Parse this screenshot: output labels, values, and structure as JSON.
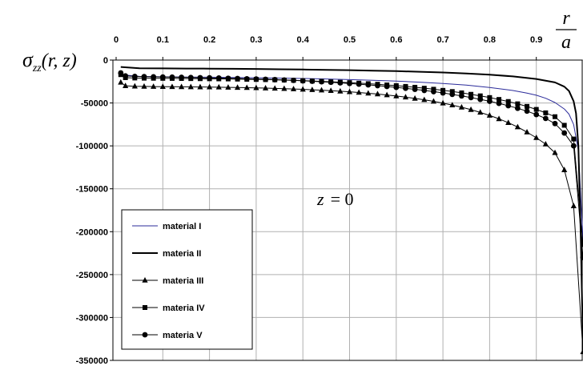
{
  "chart_data": {
    "type": "line",
    "title": "",
    "ylabel": {
      "main": "σ",
      "sub": "zz",
      "args": "(r, z)"
    },
    "xlabel": {
      "numerator": "r",
      "denominator": "a"
    },
    "annotation": {
      "var": "z",
      "eq": "= 0"
    },
    "xlim": [
      0,
      1.0
    ],
    "ylim": [
      -350000,
      0
    ],
    "x_ticks": [
      0,
      0.1,
      0.2,
      0.3,
      0.4,
      0.5,
      0.6,
      0.7,
      0.8,
      0.9
    ],
    "x_tick_labels": [
      "0",
      "0.1",
      "0.2",
      "0.3",
      "0.4",
      "0.5",
      "0.6",
      "0.7",
      "0.8",
      "0.9"
    ],
    "y_ticks": [
      0,
      -50000,
      -100000,
      -150000,
      -200000,
      -250000,
      -300000,
      -350000
    ],
    "y_tick_labels": [
      "0",
      "-50000",
      "-100000",
      "-150000",
      "-200000",
      "-250000",
      "-300000",
      "-350000"
    ],
    "grid": true,
    "x_axis_position": "top",
    "legend_position": "bottom-left",
    "series": [
      {
        "name": "material I",
        "color": "#2b2b9a",
        "marker": "none",
        "x": [
          0.01,
          0.05,
          0.1,
          0.15,
          0.2,
          0.25,
          0.3,
          0.35,
          0.4,
          0.45,
          0.5,
          0.55,
          0.6,
          0.65,
          0.7,
          0.75,
          0.8,
          0.85,
          0.88,
          0.9,
          0.92,
          0.94,
          0.96,
          0.97,
          0.98,
          0.99,
          1.0
        ],
        "values": [
          -17000,
          -19000,
          -19500,
          -19800,
          -20000,
          -20300,
          -20600,
          -21000,
          -21500,
          -22000,
          -22800,
          -23500,
          -24500,
          -25800,
          -27300,
          -29200,
          -32000,
          -35500,
          -38500,
          -41000,
          -44500,
          -49500,
          -57000,
          -63000,
          -75000,
          -105000,
          -210000
        ]
      },
      {
        "name": "materia II",
        "color": "#000000",
        "marker": "none",
        "x": [
          0.01,
          0.05,
          0.1,
          0.15,
          0.2,
          0.25,
          0.3,
          0.35,
          0.4,
          0.45,
          0.5,
          0.55,
          0.6,
          0.65,
          0.7,
          0.75,
          0.8,
          0.85,
          0.9,
          0.94,
          0.96,
          0.97,
          0.98,
          0.985,
          0.99,
          0.995,
          1.0
        ],
        "values": [
          -8000,
          -9500,
          -9700,
          -9900,
          -10000,
          -10200,
          -10400,
          -10700,
          -11000,
          -11400,
          -11800,
          -12300,
          -12900,
          -13600,
          -14500,
          -15600,
          -17000,
          -19000,
          -22000,
          -26000,
          -31000,
          -36000,
          -48000,
          -62000,
          -100000,
          -200000,
          -335000
        ]
      },
      {
        "name": "materia III",
        "color": "#000000",
        "marker": "triangle",
        "x": [
          0.01,
          0.02,
          0.04,
          0.06,
          0.08,
          0.1,
          0.12,
          0.14,
          0.16,
          0.18,
          0.2,
          0.22,
          0.24,
          0.26,
          0.28,
          0.3,
          0.32,
          0.34,
          0.36,
          0.38,
          0.4,
          0.42,
          0.44,
          0.46,
          0.48,
          0.5,
          0.52,
          0.54,
          0.56,
          0.58,
          0.6,
          0.62,
          0.64,
          0.66,
          0.68,
          0.7,
          0.72,
          0.74,
          0.76,
          0.78,
          0.8,
          0.82,
          0.84,
          0.86,
          0.88,
          0.9,
          0.92,
          0.94,
          0.96,
          0.98,
          1.0
        ],
        "values": [
          -26000,
          -30000,
          -30500,
          -30700,
          -30900,
          -31000,
          -31100,
          -31200,
          -31300,
          -31400,
          -31500,
          -31600,
          -31800,
          -32000,
          -32200,
          -32400,
          -32700,
          -33000,
          -33300,
          -33700,
          -34100,
          -34600,
          -35100,
          -35700,
          -36300,
          -37000,
          -37800,
          -38700,
          -39600,
          -40700,
          -41900,
          -43200,
          -44700,
          -46300,
          -48100,
          -50200,
          -52500,
          -55000,
          -57800,
          -61000,
          -64500,
          -68500,
          -73000,
          -78000,
          -84000,
          -90500,
          -98000,
          -108000,
          -128000,
          -170000,
          -340000
        ]
      },
      {
        "name": "materia IV",
        "color": "#000000",
        "marker": "square",
        "x": [
          0.01,
          0.02,
          0.04,
          0.06,
          0.08,
          0.1,
          0.12,
          0.14,
          0.16,
          0.18,
          0.2,
          0.22,
          0.24,
          0.26,
          0.28,
          0.3,
          0.32,
          0.34,
          0.36,
          0.38,
          0.4,
          0.42,
          0.44,
          0.46,
          0.48,
          0.5,
          0.52,
          0.54,
          0.56,
          0.58,
          0.6,
          0.62,
          0.64,
          0.66,
          0.68,
          0.7,
          0.72,
          0.74,
          0.76,
          0.78,
          0.8,
          0.82,
          0.84,
          0.86,
          0.88,
          0.9,
          0.92,
          0.94,
          0.96,
          0.98,
          1.0
        ],
        "values": [
          -17000,
          -20500,
          -20900,
          -21100,
          -21200,
          -21300,
          -21400,
          -21500,
          -21600,
          -21700,
          -21800,
          -21900,
          -22000,
          -22200,
          -22400,
          -22600,
          -22800,
          -23000,
          -23300,
          -23600,
          -24000,
          -24400,
          -24800,
          -25300,
          -25800,
          -26300,
          -26900,
          -27500,
          -28200,
          -29000,
          -29800,
          -30700,
          -31700,
          -32800,
          -34000,
          -35300,
          -36700,
          -38200,
          -39900,
          -41700,
          -43700,
          -45900,
          -48300,
          -51000,
          -54000,
          -57500,
          -61500,
          -66000,
          -76000,
          -92000,
          -215000
        ]
      },
      {
        "name": "materia V",
        "color": "#000000",
        "marker": "circle",
        "x": [
          0.01,
          0.02,
          0.04,
          0.06,
          0.08,
          0.1,
          0.12,
          0.14,
          0.16,
          0.18,
          0.2,
          0.22,
          0.24,
          0.26,
          0.28,
          0.3,
          0.32,
          0.34,
          0.36,
          0.38,
          0.4,
          0.42,
          0.44,
          0.46,
          0.48,
          0.5,
          0.52,
          0.54,
          0.56,
          0.58,
          0.6,
          0.62,
          0.64,
          0.66,
          0.68,
          0.7,
          0.72,
          0.74,
          0.76,
          0.78,
          0.8,
          0.82,
          0.84,
          0.86,
          0.88,
          0.9,
          0.92,
          0.94,
          0.96,
          0.98,
          1.0
        ],
        "values": [
          -15000,
          -18500,
          -19000,
          -19300,
          -19500,
          -19700,
          -19900,
          -20100,
          -20300,
          -20500,
          -20700,
          -20900,
          -21200,
          -21500,
          -21800,
          -22100,
          -22400,
          -22800,
          -23200,
          -23700,
          -24200,
          -24700,
          -25300,
          -25900,
          -26600,
          -27300,
          -28100,
          -28900,
          -29800,
          -30800,
          -31800,
          -32900,
          -34100,
          -35400,
          -36800,
          -38300,
          -40000,
          -41800,
          -43700,
          -45800,
          -48000,
          -50500,
          -53200,
          -56200,
          -59500,
          -63500,
          -68000,
          -74000,
          -85000,
          -100000,
          -230000
        ]
      }
    ]
  }
}
